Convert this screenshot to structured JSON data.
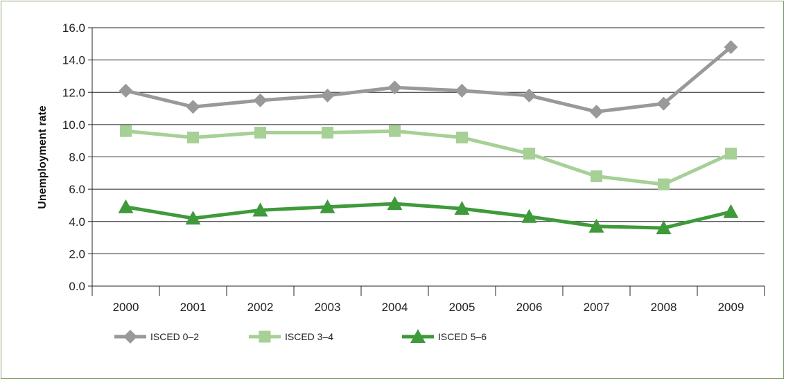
{
  "chart_data": {
    "type": "line",
    "title": "",
    "xlabel": "",
    "ylabel": "Unemployment rate",
    "categories": [
      "2000",
      "2001",
      "2002",
      "2003",
      "2004",
      "2005",
      "2006",
      "2007",
      "2008",
      "2009"
    ],
    "ylim": [
      0,
      16
    ],
    "yticks": [
      "0.0",
      "2.0",
      "4.0",
      "6.0",
      "8.0",
      "10.0",
      "12.0",
      "14.0",
      "16.0"
    ],
    "grid": true,
    "legend_position": "bottom-left",
    "series": [
      {
        "name": "ISCED 0–2",
        "marker": "diamond",
        "color": "#999999",
        "values": [
          12.1,
          11.1,
          11.5,
          11.8,
          12.3,
          12.1,
          11.8,
          10.8,
          11.3,
          14.8
        ]
      },
      {
        "name": "ISCED 3–4",
        "marker": "square",
        "color": "#a6d096",
        "values": [
          9.6,
          9.2,
          9.5,
          9.5,
          9.6,
          9.2,
          8.2,
          6.8,
          6.3,
          8.2
        ]
      },
      {
        "name": "ISCED 5–6",
        "marker": "triangle",
        "color": "#3e9a3a",
        "values": [
          4.9,
          4.2,
          4.7,
          4.9,
          5.1,
          4.8,
          4.3,
          3.7,
          3.6,
          4.6
        ]
      }
    ]
  }
}
